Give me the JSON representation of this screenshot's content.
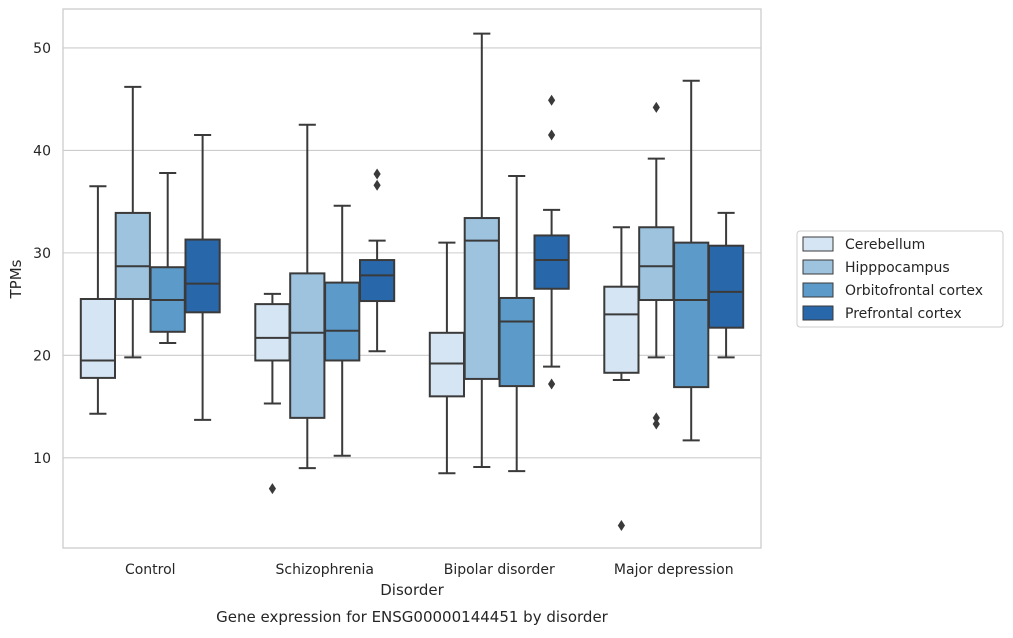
{
  "chart_data": {
    "type": "box",
    "title": "",
    "caption": "Gene expression for ENSG00000144451 by disorder",
    "xlabel": "Disorder",
    "ylabel": "TPMs",
    "ylim": [
      1.2,
      53.8
    ],
    "yticks": [
      10,
      20,
      30,
      40,
      50
    ],
    "grid": "horizontal",
    "legend_position": "right",
    "categories": [
      "Control",
      "Schizophrenia",
      "Bipolar disorder",
      "Major depression"
    ],
    "series": [
      {
        "name": "Cerebellum",
        "color": "#d6e5f4",
        "boxes": [
          {
            "whisker_low": 14.3,
            "q1": 17.8,
            "median": 19.5,
            "q3": 25.5,
            "whisker_high": 36.5,
            "outliers": []
          },
          {
            "whisker_low": 15.3,
            "q1": 19.5,
            "median": 21.7,
            "q3": 25.0,
            "whisker_high": 26.0,
            "outliers": [
              7.0
            ]
          },
          {
            "whisker_low": 8.5,
            "q1": 16.0,
            "median": 19.2,
            "q3": 22.2,
            "whisker_high": 31.0,
            "outliers": []
          },
          {
            "whisker_low": 17.6,
            "q1": 18.3,
            "median": 24.0,
            "q3": 26.7,
            "whisker_high": 32.5,
            "outliers": [
              3.4
            ]
          }
        ]
      },
      {
        "name": "Hipppocampus",
        "color": "#9dc3df",
        "boxes": [
          {
            "whisker_low": 19.8,
            "q1": 25.5,
            "median": 28.7,
            "q3": 33.9,
            "whisker_high": 46.2,
            "outliers": []
          },
          {
            "whisker_low": 9.0,
            "q1": 13.9,
            "median": 22.2,
            "q3": 28.0,
            "whisker_high": 42.5,
            "outliers": []
          },
          {
            "whisker_low": 9.1,
            "q1": 17.7,
            "median": 31.2,
            "q3": 33.4,
            "whisker_high": 51.4,
            "outliers": []
          },
          {
            "whisker_low": 19.8,
            "q1": 25.4,
            "median": 28.7,
            "q3": 32.5,
            "whisker_high": 39.2,
            "outliers": [
              44.2,
              13.9,
              13.3
            ]
          }
        ]
      },
      {
        "name": "Orbitofrontal cortex",
        "color": "#5b9ac9",
        "boxes": [
          {
            "whisker_low": 21.2,
            "q1": 22.3,
            "median": 25.4,
            "q3": 28.6,
            "whisker_high": 37.8,
            "outliers": []
          },
          {
            "whisker_low": 10.2,
            "q1": 19.5,
            "median": 22.4,
            "q3": 27.1,
            "whisker_high": 34.6,
            "outliers": []
          },
          {
            "whisker_low": 8.7,
            "q1": 17.0,
            "median": 23.3,
            "q3": 25.6,
            "whisker_high": 37.5,
            "outliers": []
          },
          {
            "whisker_low": 11.7,
            "q1": 16.9,
            "median": 25.4,
            "q3": 31.0,
            "whisker_high": 46.8,
            "outliers": []
          }
        ]
      },
      {
        "name": "Prefrontal cortex",
        "color": "#2967ab",
        "boxes": [
          {
            "whisker_low": 13.7,
            "q1": 24.2,
            "median": 27.0,
            "q3": 31.3,
            "whisker_high": 41.5,
            "outliers": []
          },
          {
            "whisker_low": 20.4,
            "q1": 25.3,
            "median": 27.8,
            "q3": 29.3,
            "whisker_high": 31.2,
            "outliers": [
              37.7,
              36.6
            ]
          },
          {
            "whisker_low": 18.9,
            "q1": 26.5,
            "median": 29.3,
            "q3": 31.7,
            "whisker_high": 34.2,
            "outliers": [
              44.9,
              41.5,
              17.2
            ]
          },
          {
            "whisker_low": 19.8,
            "q1": 22.7,
            "median": 26.2,
            "q3": 30.7,
            "whisker_high": 33.9,
            "outliers": []
          }
        ]
      }
    ]
  }
}
